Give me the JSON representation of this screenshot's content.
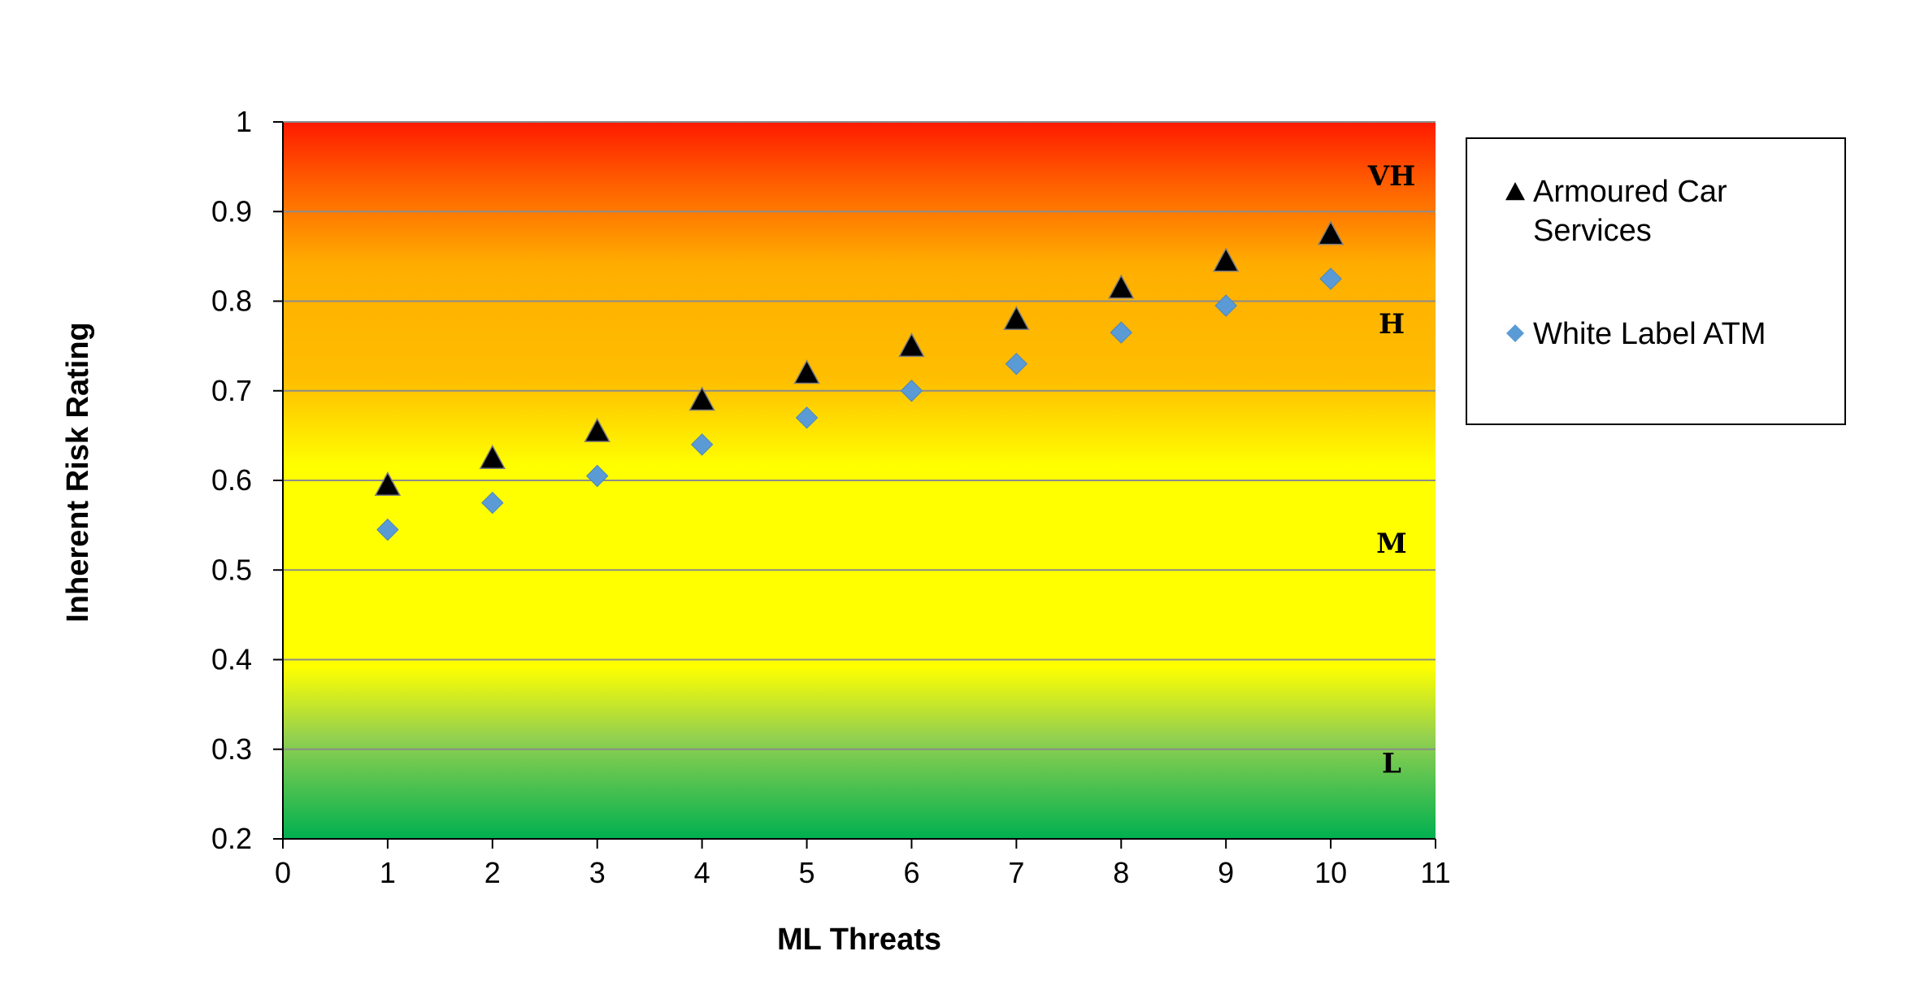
{
  "chart_data": {
    "type": "scatter",
    "title": "",
    "xlabel": "ML Threats",
    "ylabel": "Inherent Risk Rating",
    "xlim": [
      0,
      11
    ],
    "ylim": [
      0.2,
      1
    ],
    "x_ticks": [
      0,
      1,
      2,
      3,
      4,
      5,
      6,
      7,
      8,
      9,
      10,
      11
    ],
    "y_ticks": [
      "0.2",
      "0.3",
      "0.4",
      "0.5",
      "0.6",
      "0.7",
      "0.8",
      "0.9",
      "1"
    ],
    "grid": "horizontal",
    "legend_position": "right",
    "background_zones": [
      {
        "label": "VH",
        "label_y": 0.94,
        "color": "#ff2a00"
      },
      {
        "label": "H",
        "label_y": 0.775,
        "color": "#ffb000"
      },
      {
        "label": "M",
        "label_y": 0.53,
        "color": "#ffff00"
      },
      {
        "label": "L",
        "label_y": 0.285,
        "color": "#00b050"
      }
    ],
    "series": [
      {
        "name": "Armoured Car Services",
        "legend_lines": [
          "Armoured Car",
          "Services"
        ],
        "marker": "triangle",
        "color": "#000000",
        "x": [
          1,
          2,
          3,
          4,
          5,
          6,
          7,
          8,
          9,
          10
        ],
        "y": [
          0.595,
          0.625,
          0.655,
          0.69,
          0.72,
          0.75,
          0.78,
          0.815,
          0.845,
          0.875
        ]
      },
      {
        "name": "White Label ATM",
        "legend_lines": [
          "White Label ATM"
        ],
        "marker": "diamond",
        "color": "#5b9bd5",
        "x": [
          1,
          2,
          3,
          4,
          5,
          6,
          7,
          8,
          9,
          10
        ],
        "y": [
          0.545,
          0.575,
          0.605,
          0.64,
          0.67,
          0.7,
          0.73,
          0.765,
          0.795,
          0.825
        ]
      }
    ]
  }
}
